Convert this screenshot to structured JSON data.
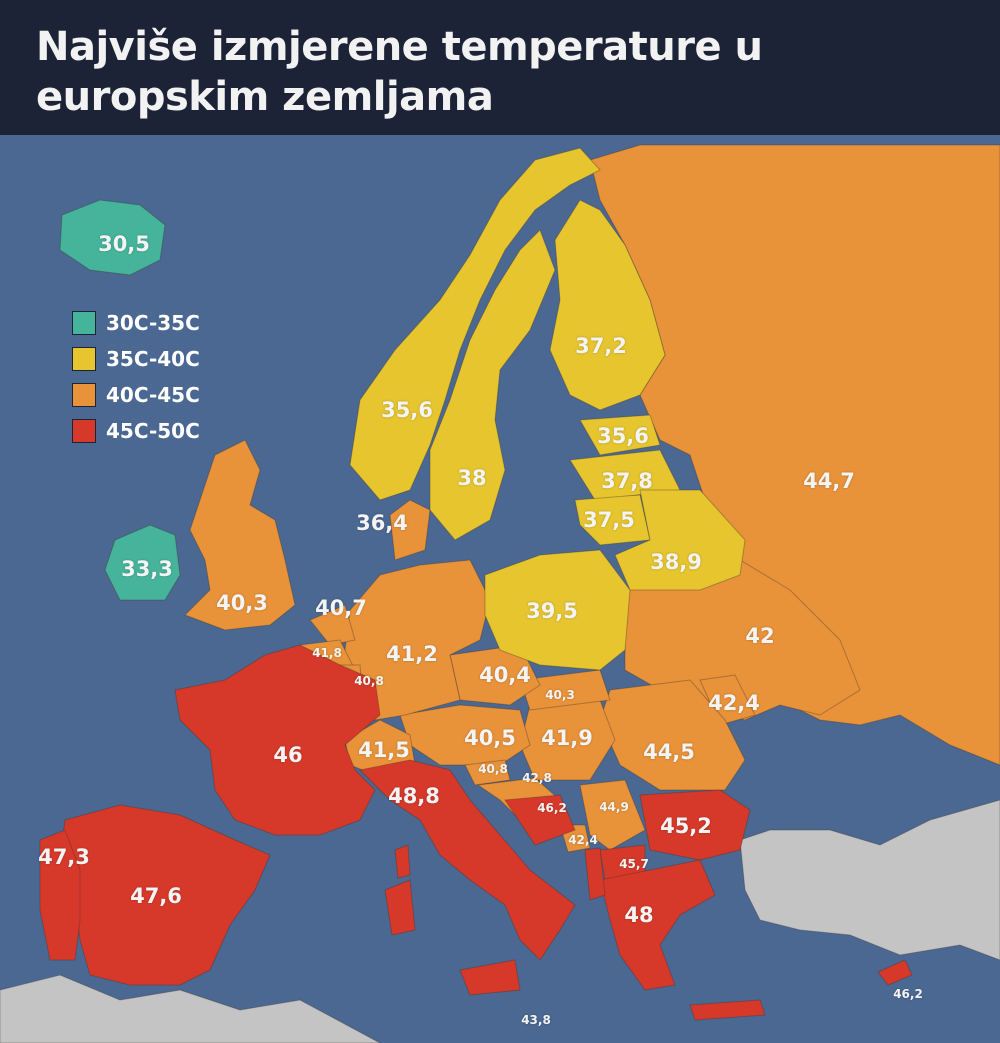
{
  "title": "Najviše izmjerene temperature u europskim zemljama",
  "colors": {
    "sea": "#4a6892",
    "header": "#1d2336",
    "teal": "#45b49a",
    "yellow": "#e6c52f",
    "orange": "#e8923a",
    "red": "#d6392a",
    "other_land": "#c4c4c4"
  },
  "legend": [
    {
      "label": "30C-35C",
      "color": "#45b49a"
    },
    {
      "label": "35C-40C",
      "color": "#e6c52f"
    },
    {
      "label": "40C-45C",
      "color": "#e8923a"
    },
    {
      "label": "45C-50C",
      "color": "#d6392a"
    }
  ],
  "temperatures": {
    "iceland": "30,5",
    "ireland": "33,3",
    "united_kingdom": "40,3",
    "norway": "35,6",
    "sweden": "38",
    "finland": "37,2",
    "denmark": "36,4",
    "estonia": "35,6",
    "latvia": "37,8",
    "lithuania": "37,5",
    "belarus": "38,9",
    "russia": "44,7",
    "netherlands": "40,7",
    "belgium": "41,8",
    "luxembourg": "40,8",
    "germany": "41,2",
    "poland": "39,5",
    "ukraine": "42",
    "czechia": "40,4",
    "slovakia": "40,3",
    "moldova": "42,4",
    "france": "46",
    "switzerland": "41,5",
    "austria": "40,5",
    "hungary": "41,9",
    "romania": "44,5",
    "slovenia": "40,8",
    "croatia": "42,8",
    "italy": "48,8",
    "bosnia": "46,2",
    "serbia": "44,9",
    "montenegro": "42,4",
    "bulgaria": "45,2",
    "north_macedonia": "45,7",
    "greece": "48",
    "portugal": "47,3",
    "spain": "47,6",
    "malta": "43,8",
    "cyprus": "46,2"
  }
}
